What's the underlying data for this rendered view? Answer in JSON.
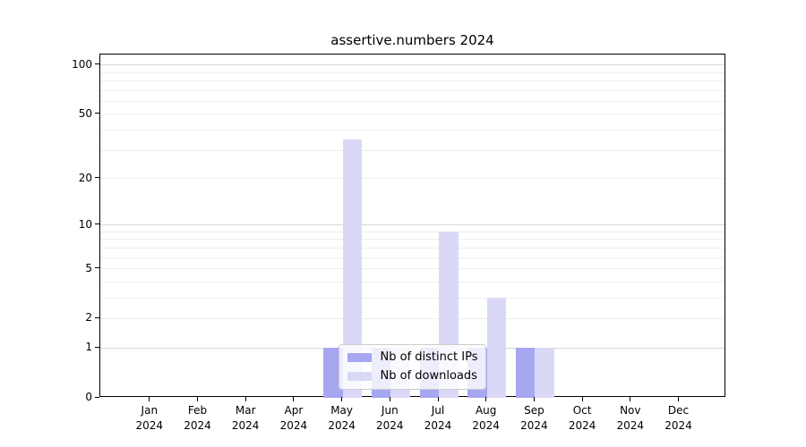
{
  "title": "assertive.numbers 2024",
  "legend": {
    "items": [
      {
        "label": "Nb of distinct IPs",
        "color": "#a6a6f1"
      },
      {
        "label": "Nb of downloads",
        "color": "#d9d9f7"
      }
    ]
  },
  "axes": {
    "y_tick_labels": [
      "100",
      "50",
      "20",
      "10",
      "5",
      "2",
      "1",
      "0"
    ],
    "x_tick_labels": [
      "Jan 2024",
      "Feb 2024",
      "Mar 2024",
      "Apr 2024",
      "May 2024",
      "Jun 2024",
      "Jul 2024",
      "Aug 2024",
      "Sep 2024",
      "Oct 2024",
      "Nov 2024",
      "Dec 2024"
    ]
  },
  "chart_data": {
    "type": "bar",
    "title": "assertive.numbers 2024",
    "categories": [
      "Jan 2024",
      "Feb 2024",
      "Mar 2024",
      "Apr 2024",
      "May 2024",
      "Jun 2024",
      "Jul 2024",
      "Aug 2024",
      "Sep 2024",
      "Oct 2024",
      "Nov 2024",
      "Dec 2024"
    ],
    "series": [
      {
        "name": "Nb of distinct IPs",
        "color": "#a6a6f1",
        "values": [
          0,
          0,
          0,
          0,
          1,
          1,
          1,
          1,
          1,
          0,
          0,
          0
        ]
      },
      {
        "name": "Nb of downloads",
        "color": "#d9d9f7",
        "values": [
          0,
          0,
          0,
          0,
          35,
          1,
          9,
          3,
          1,
          0,
          0,
          0
        ]
      }
    ],
    "yscale": "log1p",
    "yticks": [
      0,
      1,
      2,
      5,
      10,
      20,
      50,
      100
    ],
    "ylim": [
      0,
      116
    ],
    "grid": {
      "orientation": "horizontal",
      "major": [
        1,
        10,
        100
      ],
      "minor": [
        2,
        3,
        4,
        5,
        6,
        7,
        8,
        9,
        20,
        30,
        40,
        50,
        60,
        70,
        80,
        90
      ]
    },
    "legend_position": "lower center",
    "xlabel": "",
    "ylabel": ""
  },
  "colors": {
    "bar_distinct_ips": "#a6a6f1",
    "bar_downloads": "#d9d9f7",
    "grid_major": "#d7d7d7",
    "grid_minor": "#eeeeee",
    "axis": "#000000",
    "background": "#ffffff"
  }
}
